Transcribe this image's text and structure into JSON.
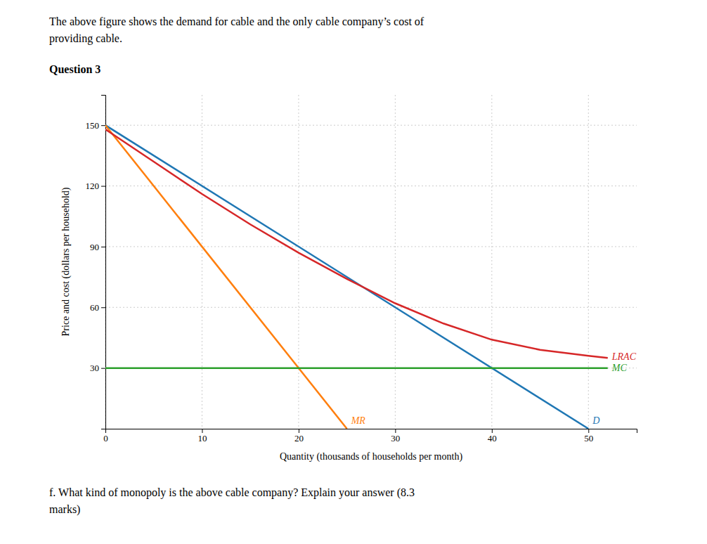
{
  "chart_data": {
    "type": "line",
    "title": "Question 3",
    "subtitle": [
      "The above figure shows the demand for cable and the only cable company’s cost of",
      "providing cable."
    ],
    "annotations": [
      "f. What kind of monopoly is the above cable company? Explain your answer (8.3",
      "marks)"
    ],
    "x_label": "Quantity (thousands of households per month)",
    "y_label": "Price and cost (dollars per household)",
    "xlim": [
      0,
      55
    ],
    "ylim": [
      0,
      165
    ],
    "xticks": [
      0,
      10,
      20,
      30,
      40,
      50
    ],
    "yticks": [
      30,
      60,
      90,
      120,
      150
    ],
    "grid": true,
    "series": [
      {
        "name": "D",
        "x": [
          0,
          50
        ],
        "values": [
          150,
          0
        ]
      },
      {
        "name": "MR",
        "x": [
          0,
          25
        ],
        "values": [
          150,
          0
        ]
      },
      {
        "name": "MC",
        "x": [
          0,
          52
        ],
        "values": [
          30,
          30
        ]
      },
      {
        "name": "LRAC",
        "x": [
          0,
          5,
          10,
          15,
          20,
          25,
          30,
          35,
          40,
          45,
          50,
          52
        ],
        "values": [
          148,
          132,
          116,
          101,
          87,
          74,
          62,
          52,
          44,
          39,
          36,
          35
        ]
      }
    ]
  }
}
